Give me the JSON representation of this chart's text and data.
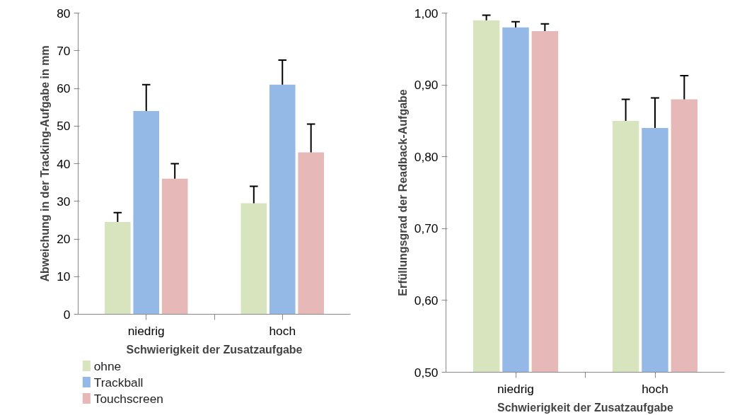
{
  "chart_data": [
    {
      "type": "bar",
      "categories": [
        "niedrig",
        "hoch"
      ],
      "xlabel": "Schwierigkeit der Zusatzaufgabe",
      "ylabel": "Abweichung in der Tracking-Aufgabe in mm",
      "ylim": [
        0,
        80
      ],
      "yticks": [
        0,
        10,
        20,
        30,
        40,
        50,
        60,
        70,
        80
      ],
      "grid": false,
      "legend": "bottom left",
      "series": [
        {
          "name": "ohne",
          "color": "#d7e4bd",
          "values": [
            24.5,
            29.5
          ],
          "errors": [
            2.5,
            4.5
          ]
        },
        {
          "name": "Trackball",
          "color": "#95b9e6",
          "values": [
            54,
            61
          ],
          "errors": [
            7,
            6.5
          ]
        },
        {
          "name": "Touchscreen",
          "color": "#e6b9b8",
          "values": [
            36,
            43
          ],
          "errors": [
            4,
            7.5
          ]
        }
      ]
    },
    {
      "type": "bar",
      "categories": [
        "niedrig",
        "hoch"
      ],
      "xlabel": "Schwierigkeit der Zusatzaufgabe",
      "ylabel": "Erfüllungsgrad der Readback-Aufgabe",
      "ylim": [
        0.5,
        1.0
      ],
      "yticks": [
        {
          "value": 0.5,
          "label": "0,50"
        },
        {
          "value": 0.6,
          "label": "0,60"
        },
        {
          "value": 0.7,
          "label": "0,70"
        },
        {
          "value": 0.8,
          "label": "0,80"
        },
        {
          "value": 0.9,
          "label": "0,90"
        },
        {
          "value": 1.0,
          "label": "1,00"
        }
      ],
      "grid": false,
      "series": [
        {
          "color": "#d7e4bd",
          "values": [
            0.99,
            0.85
          ],
          "errors": [
            0.007,
            0.03
          ]
        },
        {
          "color": "#95b9e6",
          "values": [
            0.98,
            0.84
          ],
          "errors": [
            0.008,
            0.042
          ]
        },
        {
          "color": "#e6b9b8",
          "values": [
            0.975,
            0.88
          ],
          "errors": [
            0.01,
            0.033
          ]
        }
      ]
    }
  ]
}
